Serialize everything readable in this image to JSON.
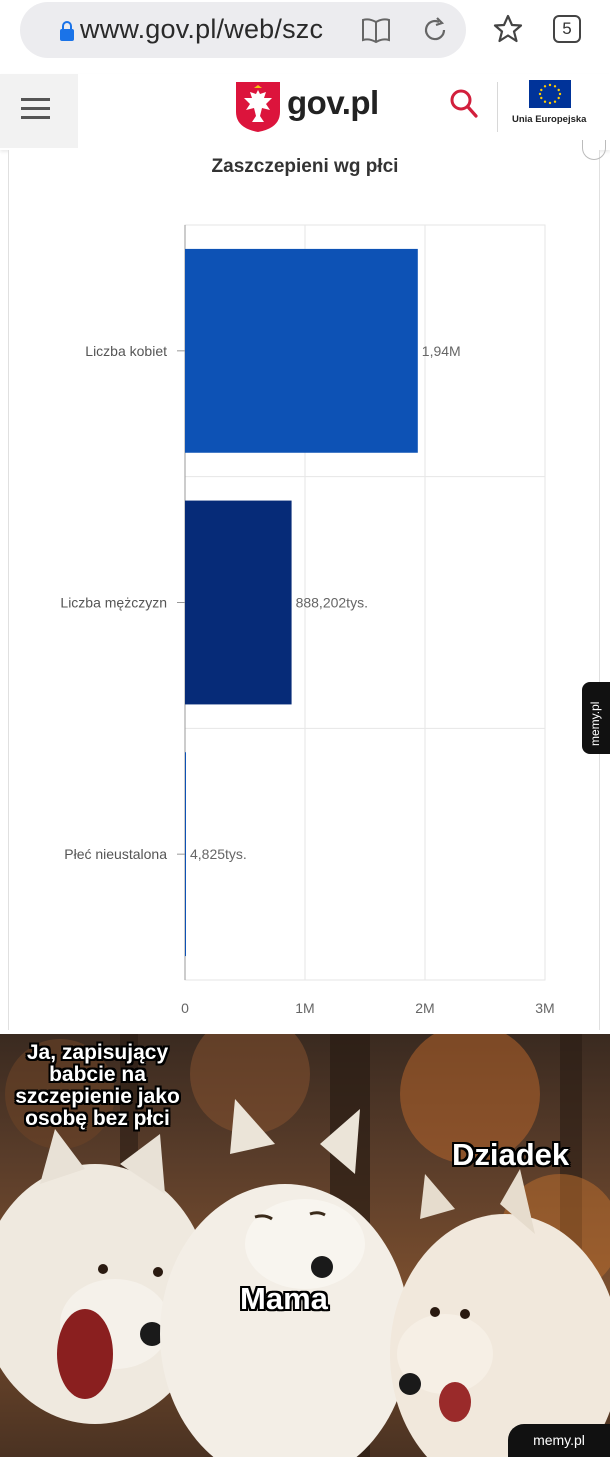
{
  "browser": {
    "url": "www.gov.pl/web/szc",
    "tab_count": "5"
  },
  "header": {
    "brand": "gov.pl",
    "eu_label": "Unia Europejska"
  },
  "chart_data": {
    "type": "bar",
    "orientation": "horizontal",
    "title": "Zaszczepieni wg płci",
    "categories": [
      "Liczba kobiet",
      "Liczba mężczyzn",
      "Płeć nieustalona"
    ],
    "values": [
      1940000,
      888202,
      4825
    ],
    "data_labels": [
      "1,94M",
      "888,202tys.",
      "4,825tys."
    ],
    "xlim": [
      0,
      3000000
    ],
    "x_ticks": [
      0,
      1000000,
      2000000,
      3000000
    ],
    "x_tick_labels": [
      "0",
      "1M",
      "2M",
      "3M"
    ],
    "grid": true,
    "colors": [
      "#0d52b5",
      "#062b78",
      "#0d52b5"
    ]
  },
  "meme": {
    "caption_left": "Ja, zapisujący babcie na szczepienie jako osobę bez płci",
    "caption_mama": "Mama",
    "caption_dziadek": "Dziadek",
    "watermark_side": "memy.pl",
    "watermark_bottom": "memy.pl"
  }
}
